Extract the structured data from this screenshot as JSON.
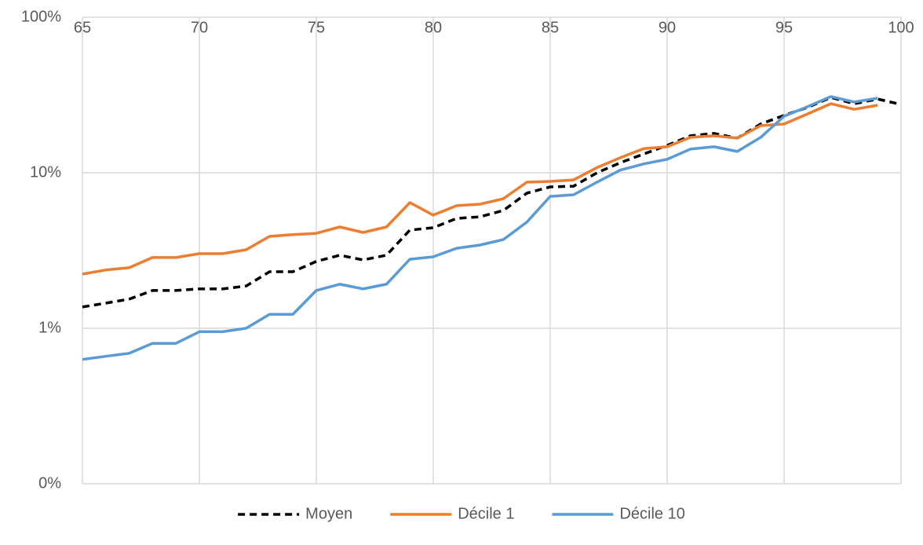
{
  "chart_data": {
    "type": "line",
    "log_scale_y": true,
    "grid": true,
    "legend": "bottom",
    "x": [
      65,
      66,
      67,
      68,
      69,
      70,
      71,
      72,
      73,
      74,
      75,
      76,
      77,
      78,
      79,
      80,
      81,
      82,
      83,
      84,
      85,
      86,
      87,
      88,
      89,
      90,
      91,
      92,
      93,
      94,
      95,
      96,
      97,
      98,
      99,
      100
    ],
    "xlim": [
      65,
      100
    ],
    "xticks": [
      65,
      70,
      75,
      80,
      85,
      90,
      95,
      100
    ],
    "ylim": [
      0.1,
      100
    ],
    "yticks": [
      {
        "value": 0.1,
        "label": "0%"
      },
      {
        "value": 1,
        "label": "1%"
      },
      {
        "value": 10,
        "label": "10%"
      },
      {
        "value": 100,
        "label": "100%"
      }
    ],
    "series": [
      {
        "name": "Moyen",
        "color": "#000000",
        "dashed": true,
        "values": [
          1.37,
          1.45,
          1.54,
          1.75,
          1.75,
          1.79,
          1.79,
          1.87,
          2.31,
          2.31,
          2.69,
          2.95,
          2.75,
          2.95,
          4.28,
          4.43,
          5.09,
          5.21,
          5.72,
          7.39,
          8.11,
          8.2,
          10,
          11.6,
          13.2,
          15.0,
          17.3,
          17.9,
          16.7,
          20.6,
          23.4,
          26.3,
          30.5,
          27.8,
          29.8,
          27.5
        ]
      },
      {
        "name": "Décile 1",
        "color": "#ED7D31",
        "dashed": false,
        "values": [
          2.23,
          2.37,
          2.45,
          2.85,
          2.85,
          3.02,
          3.02,
          3.2,
          3.9,
          4.0,
          4.08,
          4.48,
          4.13,
          4.48,
          6.43,
          5.34,
          6.14,
          6.28,
          6.81,
          8.7,
          8.8,
          9.0,
          10.8,
          12.5,
          14.3,
          14.7,
          16.9,
          17.3,
          16.7,
          20.1,
          20.6,
          23.9,
          27.8,
          25.6,
          27.2,
          null
        ]
      },
      {
        "name": "Décile 10",
        "color": "#5B9BD5",
        "dashed": false,
        "values": [
          0.63,
          0.66,
          0.69,
          0.8,
          0.8,
          0.95,
          0.95,
          1.0,
          1.23,
          1.23,
          1.75,
          1.92,
          1.79,
          1.92,
          2.78,
          2.88,
          3.27,
          3.43,
          3.72,
          4.81,
          7.05,
          7.22,
          8.7,
          10.4,
          11.4,
          12.2,
          14.2,
          14.7,
          13.7,
          16.9,
          23.1,
          26.6,
          30.9,
          28.5,
          30.2,
          null
        ]
      }
    ]
  }
}
